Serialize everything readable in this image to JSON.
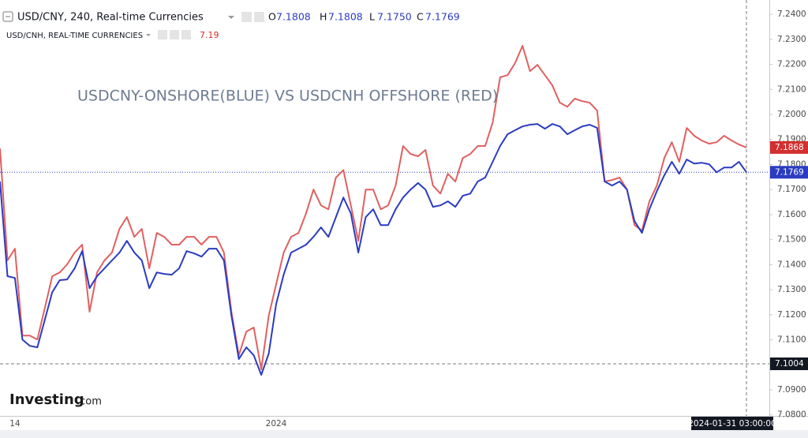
{
  "chart_data": {
    "type": "line",
    "header": {
      "title": "USD/CNY, 240, Real-time Currencies",
      "o_label": "O",
      "o": "7.1808",
      "h_label": "H",
      "h": "7.1808",
      "l_label": "L",
      "l": "7.1750",
      "c_label": "C",
      "c": "7.1769",
      "second_title": "USD/CNH, REAL-TIME CURRENCIES",
      "second_value": "7.19"
    },
    "annotation": "USDCNY-ONSHORE(BLUE) VS USDCNH OFFSHORE (RED)",
    "watermark": {
      "brand": "Investing",
      "suffix": ".com"
    },
    "categories": [
      null,
      null,
      "14",
      null,
      null,
      null,
      null,
      null,
      null,
      null,
      null,
      null,
      null,
      null,
      null,
      null,
      null,
      null,
      null,
      null,
      null,
      null,
      null,
      null,
      null,
      null,
      null,
      null,
      null,
      null,
      null,
      null,
      null,
      null,
      null,
      null,
      null,
      "2024",
      null,
      null,
      null,
      null,
      null,
      null,
      null,
      null,
      null,
      null,
      null,
      null,
      null,
      null,
      null,
      null,
      null,
      null,
      null,
      null,
      null,
      null,
      null,
      null,
      null,
      null,
      null,
      null,
      null,
      null,
      null,
      null,
      null,
      null,
      null,
      null,
      null,
      null,
      null,
      null,
      null,
      null,
      null,
      null,
      null,
      null,
      null,
      null,
      null,
      null,
      null,
      null,
      null,
      null,
      null,
      null,
      null,
      null,
      null,
      null,
      null,
      null,
      null
    ],
    "series": [
      {
        "color": "#e06060",
        "values": [
          7.1864,
          7.1417,
          7.1464,
          7.1117,
          7.1117,
          7.1101,
          7.1227,
          7.1354,
          7.1369,
          7.1401,
          7.1448,
          7.148,
          7.1212,
          7.1369,
          7.1417,
          7.1448,
          7.1543,
          7.159,
          7.1511,
          7.1543,
          7.1385,
          7.1527,
          7.1511,
          7.148,
          7.148,
          7.1511,
          7.1511,
          7.148,
          7.1511,
          7.1511,
          7.1448,
          7.1212,
          7.1038,
          7.1133,
          7.1149,
          7.0982,
          7.1196,
          7.1322,
          7.1448,
          7.1511,
          7.1527,
          7.1605,
          7.17,
          7.1637,
          7.1621,
          7.1748,
          7.1778,
          7.1637,
          7.1495,
          7.17,
          7.17,
          7.1621,
          7.1637,
          7.1716,
          7.1874,
          7.1842,
          7.1833,
          7.1858,
          7.1716,
          7.1684,
          7.1763,
          7.1732,
          7.1826,
          7.1842,
          7.1874,
          7.1874,
          7.1968,
          7.2148,
          7.2157,
          7.2205,
          7.2274,
          7.2173,
          7.2198,
          7.2157,
          7.2116,
          7.2047,
          7.2031,
          7.2063,
          7.2053,
          7.2047,
          7.2015,
          7.1732,
          7.1738,
          7.1748,
          7.17,
          7.1558,
          7.1536,
          7.1653,
          7.1716,
          7.1826,
          7.1889,
          7.1811,
          7.1946,
          7.1915,
          7.1896,
          7.1883,
          7.1889,
          7.1915,
          7.1896,
          7.188,
          7.1868
        ]
      },
      {
        "color": "#2b3cc0",
        "values": [
          7.1732,
          7.1354,
          7.1347,
          7.1101,
          7.1076,
          7.107,
          7.118,
          7.129,
          7.1338,
          7.1341,
          7.1385,
          7.1454,
          7.1306,
          7.1354,
          7.1385,
          7.1417,
          7.1448,
          7.1495,
          7.1448,
          7.1417,
          7.1306,
          7.1369,
          7.1363,
          7.136,
          7.1385,
          7.1454,
          7.1445,
          7.1432,
          7.1464,
          7.1464,
          7.1417,
          7.1196,
          7.1023,
          7.107,
          7.1038,
          7.096,
          7.1045,
          7.1243,
          7.136,
          7.1448,
          7.1464,
          7.148,
          7.1511,
          7.1549,
          7.1511,
          7.159,
          7.1668,
          7.1605,
          7.1448,
          7.159,
          7.1621,
          7.1558,
          7.1558,
          7.1621,
          7.1668,
          7.17,
          7.1726,
          7.17,
          7.1631,
          7.1637,
          7.1653,
          7.1631,
          7.1675,
          7.1684,
          7.1732,
          7.1748,
          7.1811,
          7.1874,
          7.1921,
          7.1937,
          7.1952,
          7.1959,
          7.1962,
          7.1943,
          7.1962,
          7.1952,
          7.1921,
          7.1937,
          7.1952,
          7.1959,
          7.1946,
          7.1732,
          7.1716,
          7.1732,
          7.17,
          7.1574,
          7.1527,
          7.1621,
          7.1694,
          7.1757,
          7.1811,
          7.1763,
          7.182,
          7.1804,
          7.1807,
          7.1801,
          7.1769,
          7.1788,
          7.1788,
          7.1811,
          7.1769
        ]
      }
    ],
    "ylim": [
      7.0796,
      7.2457
    ],
    "yticks": [
      {
        "value": 7.08,
        "label": "7.0800"
      },
      {
        "value": 7.09,
        "label": "7.0900"
      },
      {
        "value": 7.1,
        "label": "7.1000"
      },
      {
        "value": 7.11,
        "label": "7.1100"
      },
      {
        "value": 7.12,
        "label": "7.1200"
      },
      {
        "value": 7.13,
        "label": "7.1300"
      },
      {
        "value": 7.14,
        "label": "7.1400"
      },
      {
        "value": 7.15,
        "label": "7.1500"
      },
      {
        "value": 7.16,
        "label": "7.1600"
      },
      {
        "value": 7.17,
        "label": "7.1700"
      },
      {
        "value": 7.18,
        "label": "7.1800"
      },
      {
        "value": 7.19,
        "label": "7.1900"
      },
      {
        "value": 7.2,
        "label": "7.2000"
      },
      {
        "value": 7.21,
        "label": "7.2100"
      },
      {
        "value": 7.22,
        "label": "7.2200"
      },
      {
        "value": 7.23,
        "label": "7.2300"
      },
      {
        "value": 7.24,
        "label": "7.2400"
      }
    ],
    "grid": false,
    "price_labels": [
      {
        "value": 7.1868,
        "label": "7.1868",
        "color": "#d32f2f"
      },
      {
        "value": 7.1769,
        "label": "7.1769",
        "color": "#2b3cc0"
      }
    ],
    "crosshair": {
      "value": 7.1004,
      "label": "7.1004",
      "time": "2024-01-31 03:00:00"
    }
  }
}
